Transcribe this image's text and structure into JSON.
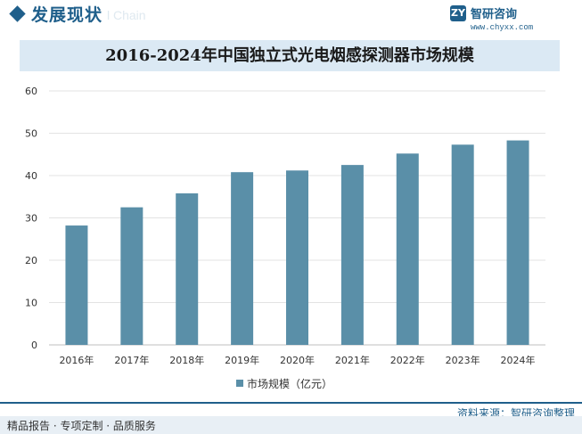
{
  "header": {
    "section_title": "发展现状",
    "section_subtitle": "l Chain",
    "brand_logo_text": "ZY",
    "brand_name": "智研咨询",
    "brand_url": "www.chyxx.com"
  },
  "colors": {
    "brand": "#1f5f8b",
    "bar": "#5a8fa8",
    "title_bg": "#dbe9f4"
  },
  "chart_data": {
    "type": "bar",
    "title": "2016-2024年中国独立式光电烟感探测器市场规模",
    "categories": [
      "2016年",
      "2017年",
      "2018年",
      "2019年",
      "2020年",
      "2021年",
      "2022年",
      "2023年",
      "2024年"
    ],
    "series": [
      {
        "name": "市场规模（亿元）",
        "values": [
          28.2,
          32.5,
          35.8,
          40.8,
          41.2,
          42.5,
          45.2,
          47.3,
          48.3
        ]
      }
    ],
    "ylim": [
      0,
      60
    ],
    "yticks": [
      0,
      10,
      20,
      30,
      40,
      50,
      60
    ],
    "xlabel": "",
    "ylabel": "",
    "grid": true,
    "legend": "bottom-center"
  },
  "footer": {
    "source": "资料来源：智研咨询整理",
    "tagline": "精品报告 · 专项定制 · 品质服务"
  }
}
